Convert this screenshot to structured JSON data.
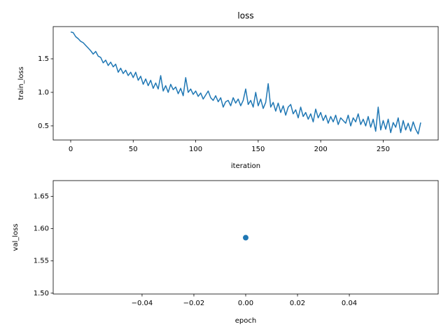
{
  "chart_data": [
    {
      "type": "line",
      "title": "loss",
      "xlabel": "iteration",
      "ylabel": "train_loss",
      "xlim": [
        -14,
        294
      ],
      "ylim": [
        0.29,
        1.98
      ],
      "xticks": [
        0,
        50,
        100,
        150,
        200,
        250
      ],
      "yticks": [
        0.5,
        {
          "value": 1.0,
          "label": "1.0"
        },
        1.5
      ],
      "series": [
        {
          "name": "train_loss",
          "color": "#1f77b4",
          "x": [
            0,
            2,
            4,
            6,
            8,
            10,
            12,
            14,
            16,
            18,
            20,
            22,
            24,
            26,
            28,
            30,
            32,
            34,
            36,
            38,
            40,
            42,
            44,
            46,
            48,
            50,
            52,
            54,
            56,
            58,
            60,
            62,
            64,
            66,
            68,
            70,
            72,
            74,
            76,
            78,
            80,
            82,
            84,
            86,
            88,
            90,
            92,
            94,
            96,
            98,
            100,
            102,
            104,
            106,
            108,
            110,
            112,
            114,
            116,
            118,
            120,
            122,
            124,
            126,
            128,
            130,
            132,
            134,
            136,
            138,
            140,
            142,
            144,
            146,
            148,
            150,
            152,
            154,
            156,
            158,
            160,
            162,
            164,
            166,
            168,
            170,
            172,
            174,
            176,
            178,
            180,
            182,
            184,
            186,
            188,
            190,
            192,
            194,
            196,
            198,
            200,
            202,
            204,
            206,
            208,
            210,
            212,
            214,
            216,
            218,
            220,
            222,
            224,
            226,
            228,
            230,
            232,
            234,
            236,
            238,
            240,
            242,
            244,
            246,
            248,
            250,
            252,
            254,
            256,
            258,
            260,
            262,
            264,
            266,
            268,
            270,
            272,
            274,
            276,
            278,
            280
          ],
          "values": [
            1.9,
            1.89,
            1.83,
            1.8,
            1.76,
            1.74,
            1.7,
            1.66,
            1.62,
            1.57,
            1.61,
            1.54,
            1.52,
            1.44,
            1.48,
            1.4,
            1.45,
            1.38,
            1.42,
            1.3,
            1.36,
            1.28,
            1.33,
            1.25,
            1.3,
            1.22,
            1.3,
            1.18,
            1.24,
            1.12,
            1.2,
            1.1,
            1.18,
            1.06,
            1.14,
            1.05,
            1.25,
            1.02,
            1.1,
            1.0,
            1.12,
            1.04,
            1.08,
            0.98,
            1.06,
            0.95,
            1.22,
            1.0,
            1.05,
            0.97,
            1.02,
            0.94,
            0.99,
            0.9,
            0.96,
            1.02,
            0.92,
            0.88,
            0.95,
            0.86,
            0.92,
            0.78,
            0.86,
            0.88,
            0.8,
            0.92,
            0.84,
            0.9,
            0.8,
            0.88,
            1.05,
            0.82,
            0.88,
            0.78,
            1.0,
            0.8,
            0.9,
            0.76,
            0.85,
            1.13,
            0.78,
            0.85,
            0.72,
            0.84,
            0.7,
            0.8,
            0.66,
            0.78,
            0.82,
            0.68,
            0.74,
            0.62,
            0.78,
            0.64,
            0.7,
            0.6,
            0.68,
            0.56,
            0.75,
            0.62,
            0.7,
            0.58,
            0.66,
            0.54,
            0.64,
            0.56,
            0.66,
            0.52,
            0.62,
            0.58,
            0.54,
            0.66,
            0.5,
            0.62,
            0.56,
            0.68,
            0.52,
            0.6,
            0.5,
            0.64,
            0.48,
            0.6,
            0.42,
            0.78,
            0.44,
            0.58,
            0.45,
            0.6,
            0.4,
            0.55,
            0.48,
            0.62,
            0.4,
            0.58,
            0.44,
            0.54,
            0.42,
            0.56,
            0.45,
            0.38,
            0.55
          ]
        }
      ]
    },
    {
      "type": "scatter",
      "xlabel": "epoch",
      "ylabel": "val_loss",
      "xlim": [
        -0.0743,
        0.0743
      ],
      "ylim": [
        1.4987,
        1.6745
      ],
      "xticks": [
        {
          "value": -0.04,
          "label": "−0.04"
        },
        {
          "value": -0.02,
          "label": "−0.02"
        },
        {
          "value": 0,
          "label": "0.00"
        },
        0.02,
        0.04
      ],
      "yticks": [
        {
          "value": 1.5,
          "label": "1.50"
        },
        1.55,
        {
          "value": 1.6,
          "label": "1.60"
        },
        1.65
      ],
      "series": [
        {
          "name": "val_loss",
          "color": "#1f77b4",
          "x": [
            0
          ],
          "values": [
            1.586
          ]
        }
      ]
    }
  ]
}
